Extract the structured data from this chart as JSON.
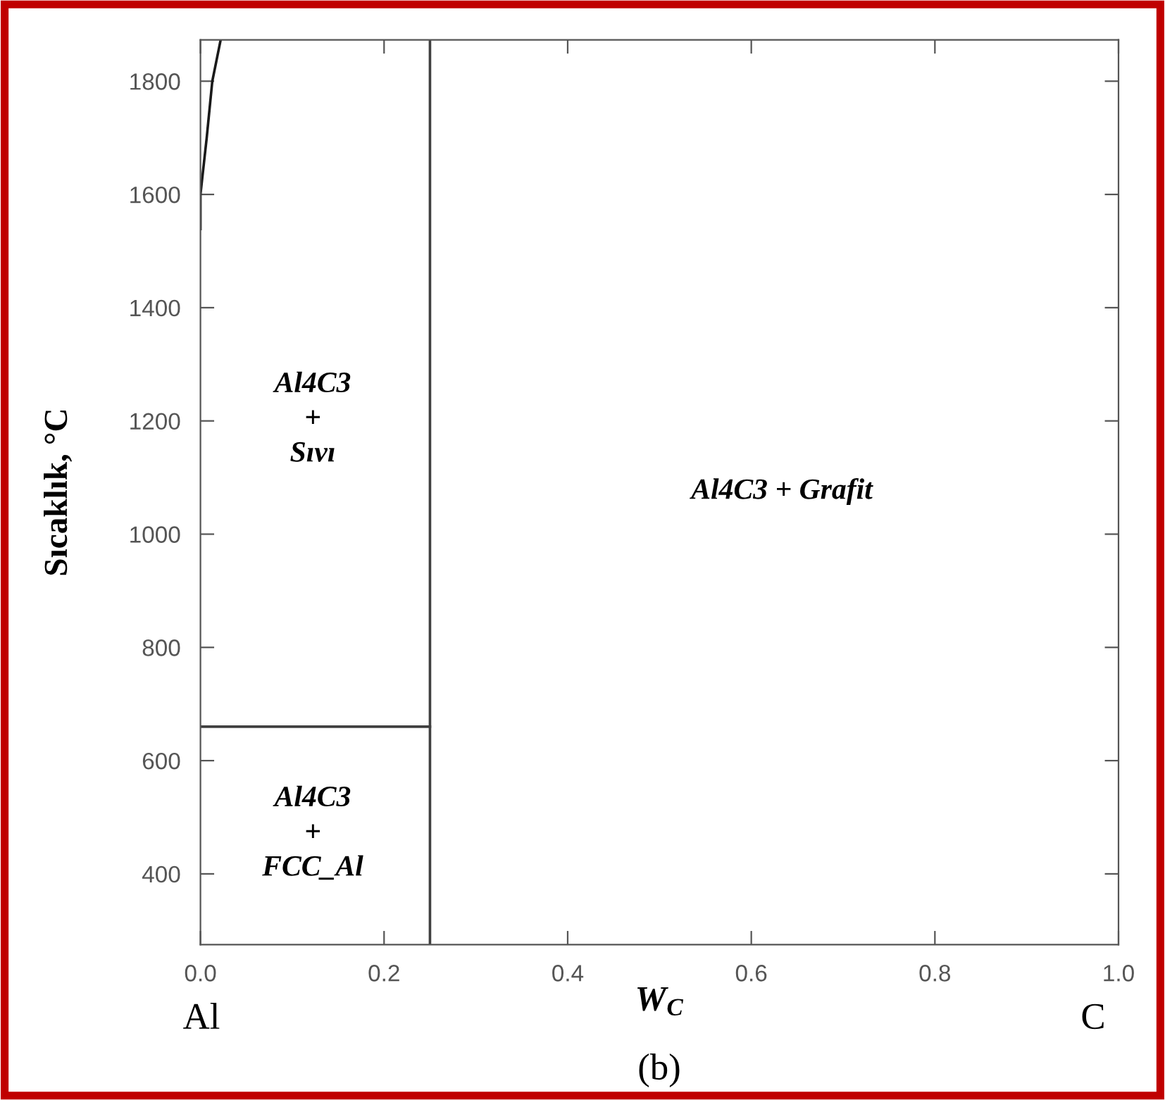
{
  "chart_data": {
    "type": "line",
    "xlabel": "W$_{C}$",
    "ylabel": "Sıcaklık, °C",
    "xlim": [
      0,
      1.0
    ],
    "ylim": [
      275,
      1873
    ],
    "xticks": [
      {
        "value": 0,
        "label": "0.0"
      },
      0.2,
      0.4,
      0.6,
      0.8,
      {
        "value": 1.0,
        "label": "1.0"
      }
    ],
    "yticks": [
      400,
      600,
      800,
      1000,
      1200,
      1400,
      1600,
      1800
    ],
    "grid": false,
    "legend": false,
    "marker": "none",
    "line_style": "solid",
    "series": [
      {
        "color": "#1a1a1a",
        "x": [
          0,
          0,
          0.0068,
          0.0129,
          0.022
        ],
        "values": [
          1539,
          1600,
          1700,
          1800,
          1873
        ]
      },
      {
        "color": "#404040",
        "x": [
          0,
          0.25
        ],
        "values": [
          660,
          660
        ]
      },
      {
        "color": "#404040",
        "x": [
          0.25,
          0.25
        ],
        "values": [
          275,
          1873
        ]
      }
    ],
    "annotations": [
      "Al4C3\n+\nSıvı",
      "Al4C3 + Grafit",
      "Al4C3\n+\nFCC_Al",
      "Al",
      "C",
      "(b)"
    ]
  }
}
